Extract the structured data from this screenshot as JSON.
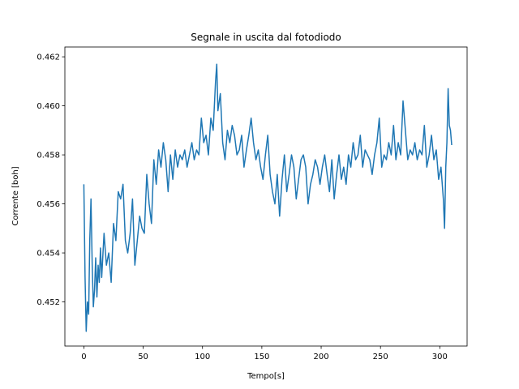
{
  "chart_data": {
    "type": "line",
    "title": "Segnale in uscita dal fotodiodo",
    "xlabel": "Tempo[s]",
    "ylabel": "Corrente [boh]",
    "xlim": [
      -16,
      323
    ],
    "ylim": [
      0.4502,
      0.4624
    ],
    "xticks": [
      0,
      50,
      100,
      150,
      200,
      250,
      300
    ],
    "yticks": [
      0.452,
      0.454,
      0.456,
      0.458,
      0.46,
      0.462
    ],
    "xtick_labels": [
      "0",
      "50",
      "100",
      "150",
      "200",
      "250",
      "300"
    ],
    "ytick_labels": [
      "0.452",
      "0.454",
      "0.456",
      "0.458",
      "0.460",
      "0.462"
    ],
    "grid": false,
    "line_color": "#1f77b4",
    "series": [
      {
        "x": [
          0,
          1,
          2,
          3,
          4,
          5,
          6,
          7,
          8,
          9,
          10,
          11,
          12,
          13,
          14,
          15,
          17,
          19,
          21,
          23,
          25,
          27,
          29,
          31,
          33,
          35,
          37,
          39,
          41,
          43,
          45,
          47,
          49,
          51,
          53,
          55,
          57,
          59,
          61,
          63,
          65,
          67,
          69,
          71,
          73,
          75,
          77,
          79,
          81,
          83,
          85,
          87,
          89,
          91,
          93,
          95,
          97,
          99,
          101,
          103,
          105,
          107,
          109,
          111,
          112,
          113,
          115,
          117,
          119,
          121,
          123,
          125,
          127,
          129,
          131,
          133,
          135,
          137,
          139,
          141,
          143,
          145,
          147,
          149,
          151,
          153,
          155,
          157,
          159,
          161,
          163,
          165,
          167,
          169,
          171,
          173,
          175,
          177,
          179,
          181,
          183,
          185,
          187,
          189,
          191,
          193,
          195,
          197,
          199,
          201,
          203,
          205,
          207,
          209,
          211,
          213,
          215,
          217,
          219,
          221,
          223,
          225,
          227,
          229,
          231,
          233,
          235,
          237,
          239,
          241,
          243,
          245,
          247,
          249,
          251,
          253,
          255,
          257,
          259,
          261,
          263,
          265,
          267,
          269,
          271,
          273,
          275,
          277,
          279,
          281,
          283,
          285,
          287,
          289,
          291,
          293,
          295,
          297,
          299,
          301,
          303,
          304,
          305,
          306,
          307,
          308,
          309,
          310
        ],
        "y": [
          0.4568,
          0.453,
          0.4508,
          0.452,
          0.4515,
          0.4545,
          0.4562,
          0.4535,
          0.4518,
          0.4525,
          0.4538,
          0.4522,
          0.4535,
          0.4528,
          0.4542,
          0.453,
          0.4548,
          0.4535,
          0.454,
          0.4528,
          0.4552,
          0.4545,
          0.4565,
          0.4562,
          0.4568,
          0.4545,
          0.454,
          0.4548,
          0.4562,
          0.4535,
          0.4545,
          0.4555,
          0.455,
          0.4548,
          0.4572,
          0.456,
          0.4552,
          0.4578,
          0.4568,
          0.4582,
          0.4575,
          0.4585,
          0.4578,
          0.4565,
          0.458,
          0.457,
          0.4582,
          0.4575,
          0.458,
          0.4578,
          0.4582,
          0.4575,
          0.458,
          0.4585,
          0.4578,
          0.4582,
          0.458,
          0.4595,
          0.4585,
          0.4588,
          0.458,
          0.4595,
          0.459,
          0.461,
          0.4617,
          0.4598,
          0.4605,
          0.4585,
          0.4578,
          0.459,
          0.4585,
          0.4592,
          0.4588,
          0.458,
          0.4582,
          0.4588,
          0.4575,
          0.4582,
          0.4588,
          0.4595,
          0.4585,
          0.4578,
          0.4582,
          0.4575,
          0.457,
          0.458,
          0.4588,
          0.4572,
          0.4565,
          0.456,
          0.4572,
          0.4555,
          0.457,
          0.458,
          0.4565,
          0.4572,
          0.458,
          0.4575,
          0.4562,
          0.457,
          0.4578,
          0.458,
          0.4575,
          0.456,
          0.4568,
          0.4572,
          0.4578,
          0.4575,
          0.4568,
          0.4575,
          0.458,
          0.4572,
          0.4565,
          0.4578,
          0.4562,
          0.4572,
          0.458,
          0.457,
          0.4575,
          0.4568,
          0.458,
          0.4575,
          0.4585,
          0.4578,
          0.458,
          0.4588,
          0.4575,
          0.4582,
          0.458,
          0.4578,
          0.4572,
          0.458,
          0.4585,
          0.4595,
          0.4575,
          0.458,
          0.4578,
          0.4585,
          0.458,
          0.4592,
          0.4578,
          0.4585,
          0.458,
          0.4602,
          0.459,
          0.4578,
          0.4582,
          0.458,
          0.4585,
          0.4578,
          0.4582,
          0.458,
          0.4592,
          0.4575,
          0.458,
          0.4588,
          0.4578,
          0.4582,
          0.457,
          0.4575,
          0.4562,
          0.455,
          0.4575,
          0.4585,
          0.4607,
          0.4592,
          0.459,
          0.4584
        ]
      }
    ]
  }
}
